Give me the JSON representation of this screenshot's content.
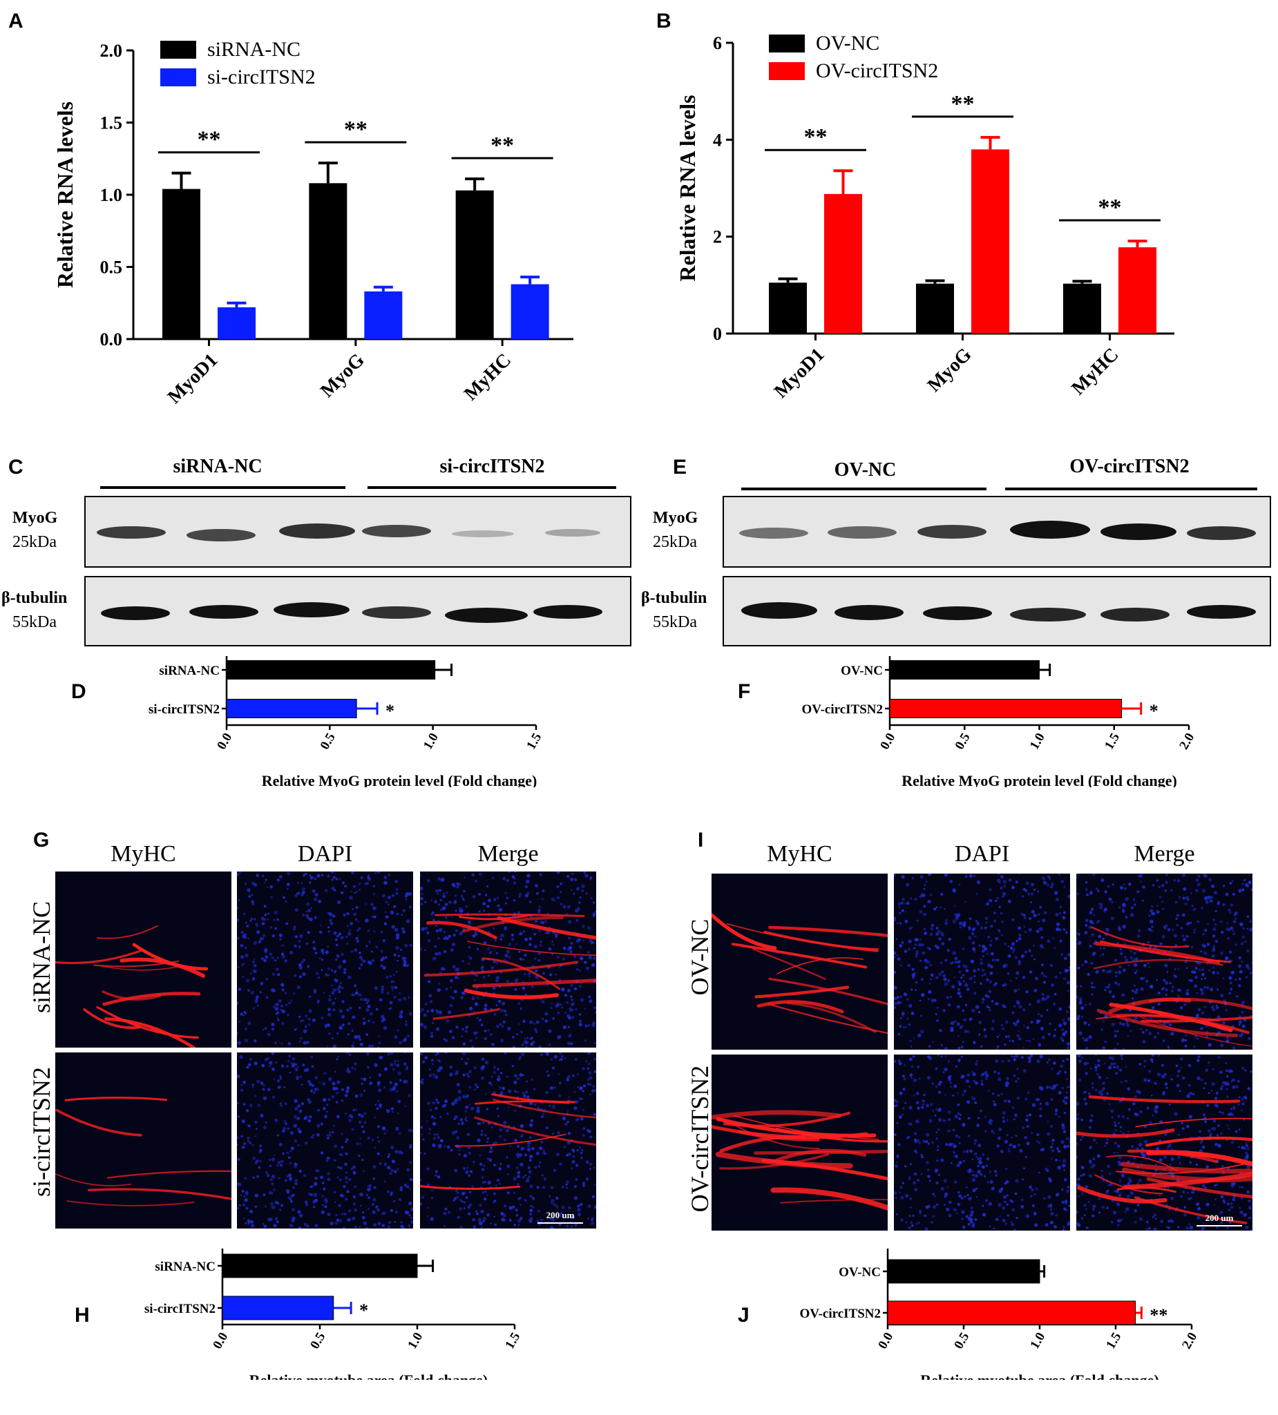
{
  "panels": {
    "A": "A",
    "B": "B",
    "C": "C",
    "D": "D",
    "E": "E",
    "F": "F",
    "G": "G",
    "H": "H",
    "I": "I",
    "J": "J"
  },
  "blots": {
    "left": {
      "group1": "siRNA-NC",
      "group2": "si-circITSN2",
      "row1_name": "MyoG",
      "row1_size": "25kDa",
      "row2_name": "β-tubulin",
      "row2_size": "55kDa"
    },
    "right": {
      "group1": "OV-NC",
      "group2": "OV-circITSN2",
      "row1_name": "MyoG",
      "row1_size": "25kDa",
      "row2_name": "β-tubulin",
      "row2_size": "55kDa"
    }
  },
  "micrographs": {
    "left": {
      "col1": "MyHC",
      "col2": "DAPI",
      "col3": "Merge",
      "row1": "siRNA-NC",
      "row2": "si-circITSN2",
      "scale": "200 um"
    },
    "right": {
      "col1": "MyHC",
      "col2": "DAPI",
      "col3": "Merge",
      "row1": "OV-NC",
      "row2": "OV-circITSN2",
      "scale": "200 um"
    }
  },
  "colors": {
    "black": "#000000",
    "blue": "#0a1fff",
    "red": "#ff0000",
    "micro_bg": "#05051a",
    "nuclei": "#1e2cc8",
    "myotube": "#ff2020"
  },
  "chart_data": [
    {
      "id": "A",
      "type": "bar",
      "ylabel": "Relative RNA levels",
      "ylim": [
        0,
        2.0
      ],
      "yticks": [
        "0.0",
        "0.5",
        "1.0",
        "1.5",
        "2.0"
      ],
      "categories": [
        "MyoD1",
        "MyoG",
        "MyHC"
      ],
      "series": [
        {
          "name": "siRNA-NC",
          "color": "#000000",
          "values": [
            1.04,
            1.08,
            1.03
          ],
          "errors": [
            0.11,
            0.14,
            0.08
          ]
        },
        {
          "name": "si-circITSN2",
          "color": "#0a1fff",
          "values": [
            0.22,
            0.33,
            0.38
          ],
          "errors": [
            0.03,
            0.03,
            0.05
          ]
        }
      ],
      "significance": [
        "**",
        "**",
        "**"
      ],
      "legend": "top-left"
    },
    {
      "id": "B",
      "type": "bar",
      "ylabel": "Relative RNA levels",
      "ylim": [
        0,
        6
      ],
      "yticks": [
        "0",
        "2",
        "4",
        "6"
      ],
      "categories": [
        "MyoD1",
        "MyoG",
        "MyHC"
      ],
      "series": [
        {
          "name": "OV-NC",
          "color": "#000000",
          "values": [
            1.05,
            1.03,
            1.03
          ],
          "errors": [
            0.08,
            0.06,
            0.05
          ]
        },
        {
          "name": "OV-circITSN2",
          "color": "#ff0000",
          "values": [
            2.88,
            3.8,
            1.78
          ],
          "errors": [
            0.48,
            0.25,
            0.13
          ]
        }
      ],
      "significance": [
        "**",
        "**",
        "**"
      ],
      "legend": "top-left"
    },
    {
      "id": "D",
      "type": "bar",
      "orientation": "horizontal",
      "xlabel": "Relative MyoG protein level (Fold change)",
      "xlim": [
        0,
        1.5
      ],
      "xticks": [
        "0.0",
        "0.5",
        "1.0",
        "1.5"
      ],
      "categories": [
        "siRNA-NC",
        "si-circITSN2"
      ],
      "values": [
        1.01,
        0.63
      ],
      "errors": [
        0.08,
        0.1
      ],
      "colors": [
        "#000000",
        "#0a1fff"
      ],
      "significance": [
        "",
        "*"
      ]
    },
    {
      "id": "F",
      "type": "bar",
      "orientation": "horizontal",
      "xlabel": "Relative MyoG protein level (Fold change)",
      "xlim": [
        0,
        2.0
      ],
      "xticks": [
        "0.0",
        "0.5",
        "1.0",
        "1.5",
        "2.0"
      ],
      "categories": [
        "OV-NC",
        "OV-circITSN2"
      ],
      "values": [
        1.0,
        1.55
      ],
      "errors": [
        0.07,
        0.13
      ],
      "colors": [
        "#000000",
        "#ff0000"
      ],
      "significance": [
        "",
        "*"
      ]
    },
    {
      "id": "H",
      "type": "bar",
      "orientation": "horizontal",
      "xlabel": "Relative myotube area (Fold change)",
      "xlim": [
        0,
        1.5
      ],
      "xticks": [
        "0.0",
        "0.5",
        "1.0",
        "1.5"
      ],
      "categories": [
        "siRNA-NC",
        "si-circITSN2"
      ],
      "values": [
        1.0,
        0.57
      ],
      "errors": [
        0.08,
        0.09
      ],
      "colors": [
        "#000000",
        "#0a1fff"
      ],
      "significance": [
        "",
        "*"
      ]
    },
    {
      "id": "J",
      "type": "bar",
      "orientation": "horizontal",
      "xlabel": "Relative myotube area (Fold change)",
      "xlim": [
        0,
        2.0
      ],
      "xticks": [
        "0.0",
        "0.5",
        "1.0",
        "1.5",
        "2.0"
      ],
      "categories": [
        "OV-NC",
        "OV-circITSN2"
      ],
      "values": [
        1.0,
        1.63
      ],
      "errors": [
        0.03,
        0.04
      ],
      "colors": [
        "#000000",
        "#ff0000"
      ],
      "significance": [
        "",
        "**"
      ]
    }
  ]
}
